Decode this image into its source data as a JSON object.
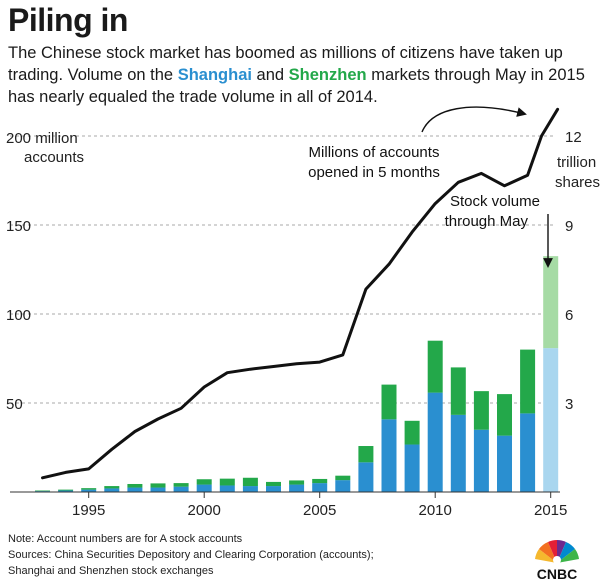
{
  "header": {
    "title": "Piling in",
    "subtitle_pre": "The Chinese stock market has boomed as millions of citizens have taken up trading. Volume on the ",
    "shanghai": "Shanghai",
    "and": " and ",
    "shenzhen": "Shenzhen",
    "subtitle_post": " markets through May in 2015 has nearly equaled the trade volume in all of 2014."
  },
  "colors": {
    "shanghai": "#2a8fd0",
    "shenzhen": "#23a84a",
    "shanghai_light": "#a9d6ef",
    "shenzhen_light": "#a6dba5",
    "line": "#111111",
    "grid": "#aaaaaa"
  },
  "chart_data": {
    "type": "bar+line",
    "left_axis": {
      "ticks": [
        50,
        100,
        150,
        200
      ],
      "top_label_line1": "200 million",
      "top_label_line2": "accounts",
      "range": [
        0,
        200
      ]
    },
    "right_axis": {
      "ticks": [
        3,
        6,
        9,
        12
      ],
      "top_label": "12",
      "unit_line1": "trillion",
      "unit_line2": "shares",
      "range": [
        0,
        12
      ]
    },
    "x_ticks": [
      "1995",
      "2000",
      "2005",
      "2010",
      "2015"
    ],
    "x_tick_years": [
      1995,
      2000,
      2005,
      2010,
      2015
    ],
    "years": [
      1993,
      1994,
      1995,
      1996,
      1997,
      1998,
      1999,
      2000,
      2001,
      2002,
      2003,
      2004,
      2005,
      2006,
      2007,
      2008,
      2009,
      2010,
      2011,
      2012,
      2013,
      2014,
      2015
    ],
    "accounts_line": [
      [
        1993,
        8
      ],
      [
        1994,
        11
      ],
      [
        1995,
        13
      ],
      [
        1996,
        24
      ],
      [
        1997,
        34
      ],
      [
        1998,
        41
      ],
      [
        1999,
        47
      ],
      [
        2000,
        59
      ],
      [
        2001,
        67
      ],
      [
        2002,
        69
      ],
      [
        2003,
        70.5
      ],
      [
        2004,
        72
      ],
      [
        2005,
        73
      ],
      [
        2006,
        77
      ],
      [
        2007,
        114
      ],
      [
        2008,
        128
      ],
      [
        2009,
        146
      ],
      [
        2010,
        162
      ],
      [
        2011,
        174
      ],
      [
        2012,
        179
      ],
      [
        2013,
        172
      ],
      [
        2014,
        178
      ],
      [
        2014.6,
        200
      ],
      [
        2015.3,
        215
      ]
    ],
    "series": [
      {
        "name": "Shanghai",
        "values": [
          0.03,
          0.05,
          0.08,
          0.12,
          0.15,
          0.15,
          0.18,
          0.25,
          0.22,
          0.2,
          0.2,
          0.25,
          0.3,
          0.4,
          1.0,
          2.45,
          1.6,
          3.35,
          2.6,
          2.1,
          1.9,
          2.65,
          4.85
        ]
      },
      {
        "name": "Shenzhen",
        "values": [
          0.02,
          0.03,
          0.05,
          0.08,
          0.12,
          0.14,
          0.12,
          0.18,
          0.23,
          0.28,
          0.14,
          0.14,
          0.14,
          0.15,
          0.55,
          1.17,
          0.8,
          1.75,
          1.6,
          1.3,
          1.4,
          2.15,
          3.1
        ]
      }
    ],
    "estimate_year": 2015,
    "annotations": {
      "accounts_line1": "Millions of accounts",
      "accounts_line2": "opened in 5 months",
      "volume_line1": "Stock volume",
      "volume_line2": "through May"
    }
  },
  "footer": {
    "note": "Note: Account numbers are for A stock accounts",
    "sources1": "Sources: China Securities Depository and Clearing Corporation (accounts);",
    "sources2": "Shanghai and Shenzhen stock exchanges",
    "logo_text": "CNBC"
  }
}
